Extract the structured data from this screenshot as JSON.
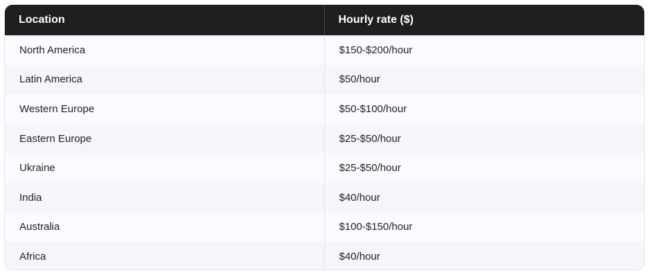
{
  "table": {
    "headers": {
      "location": "Location",
      "rate": "Hourly rate ($)"
    },
    "rows": [
      {
        "location": "North America",
        "rate": "$150-$200/hour"
      },
      {
        "location": "Latin America",
        "rate": "$50/hour"
      },
      {
        "location": "Western Europe",
        "rate": "$50-$100/hour"
      },
      {
        "location": "Eastern Europe",
        "rate": "$25-$50/hour"
      },
      {
        "location": "Ukraine",
        "rate": "$25-$50/hour"
      },
      {
        "location": "India",
        "rate": "$40/hour"
      },
      {
        "location": "Australia",
        "rate": "$100-$150/hour"
      },
      {
        "location": "Africa",
        "rate": "$40/hour"
      }
    ]
  },
  "colors": {
    "header_bg": "#1f1f1f",
    "header_text": "#ffffff",
    "body_text": "#222222",
    "border": "#d9e7ef"
  }
}
